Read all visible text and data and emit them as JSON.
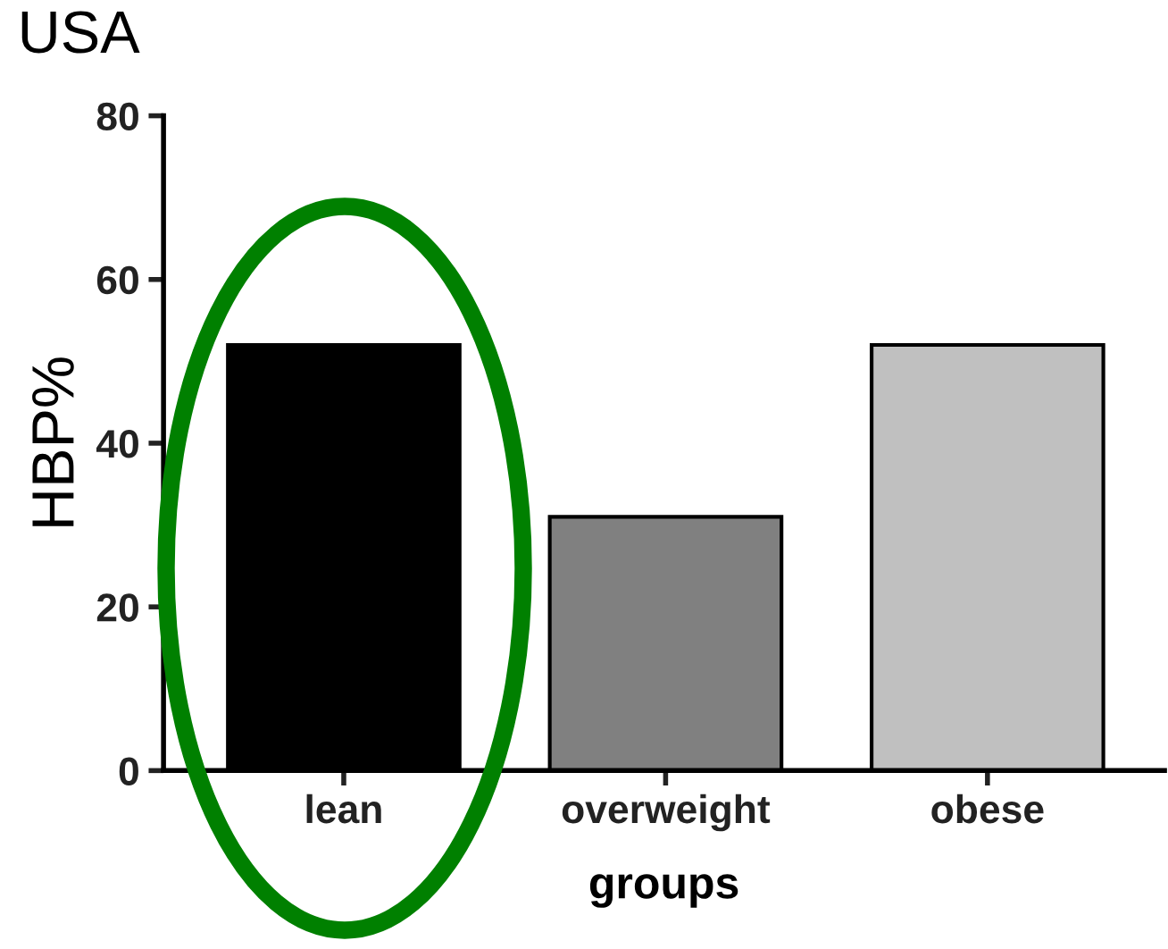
{
  "chart_data": {
    "type": "bar",
    "title": "USA",
    "xlabel": "groups",
    "ylabel": "HBP%",
    "categories": [
      "lean",
      "overweight",
      "obese"
    ],
    "values": [
      52,
      31,
      52
    ],
    "colors": [
      "#000000",
      "#808080",
      "#c0c0c0"
    ],
    "ylim": [
      0,
      80
    ],
    "yticks": [
      0,
      20,
      40,
      60,
      80
    ],
    "grid": false,
    "legend": false
  }
}
